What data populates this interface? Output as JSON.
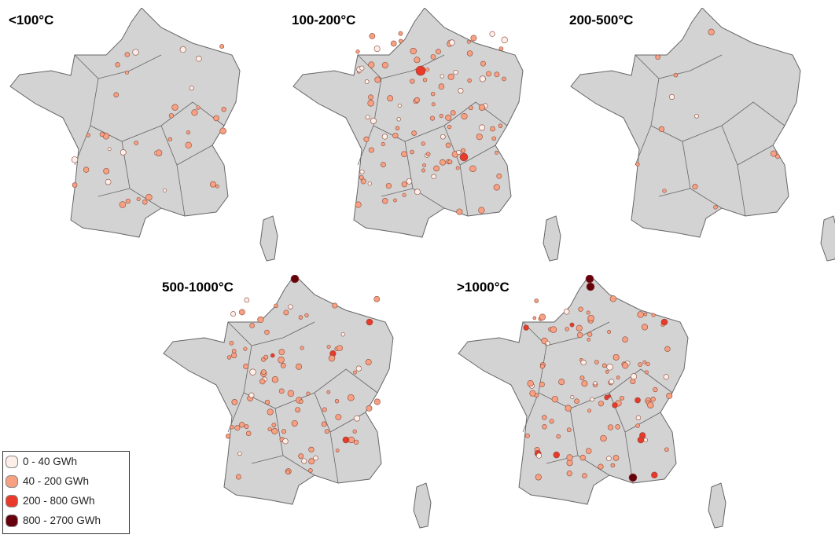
{
  "maps": [
    {
      "title": "<100°C"
    },
    {
      "title": "100-200°C"
    },
    {
      "title": "200-500°C"
    },
    {
      "title": "500-1000°C"
    },
    {
      "title": ">1000°C"
    }
  ],
  "legend": {
    "items": [
      {
        "label": "0 - 40 GWh",
        "color": "#fdeee8"
      },
      {
        "label": "40 - 200 GWh",
        "color": "#f7a082"
      },
      {
        "label": "200 - 800 GWh",
        "color": "#e8392b"
      },
      {
        "label": "800 - 2700 GWh",
        "color": "#67000d"
      }
    ]
  },
  "colors": {
    "land": "#d3d3d3",
    "border": "#555555"
  }
}
